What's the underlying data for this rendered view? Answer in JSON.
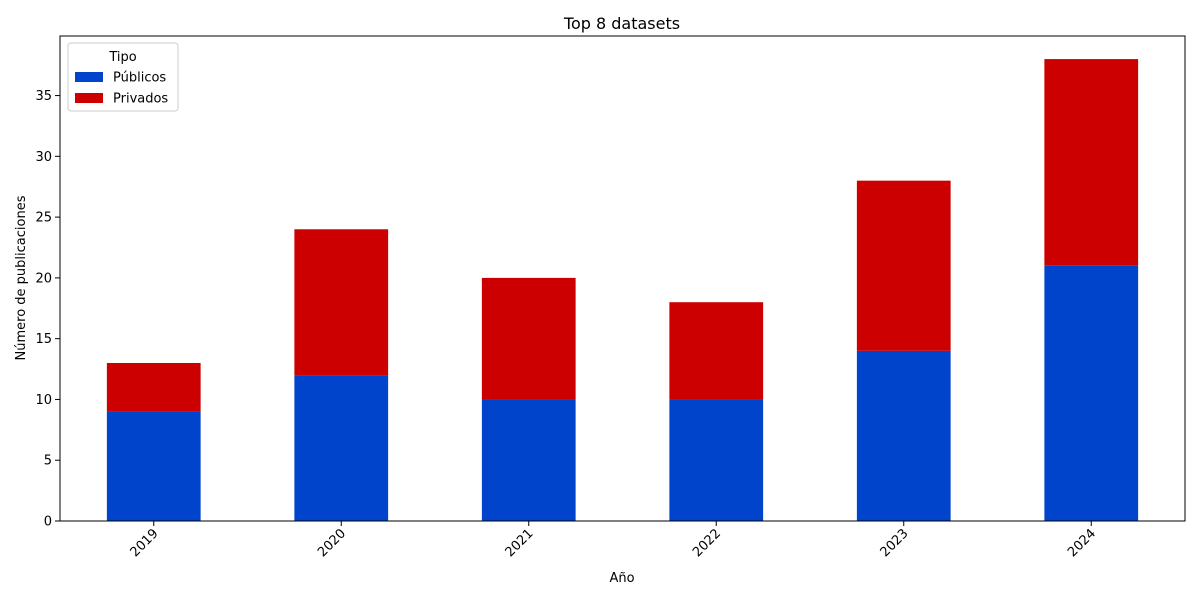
{
  "chart_data": {
    "type": "bar",
    "stacked": true,
    "title": "Top 8 datasets",
    "xlabel": "Año",
    "ylabel": "Número de publicaciones",
    "categories": [
      "2019",
      "2020",
      "2021",
      "2022",
      "2023",
      "2024"
    ],
    "series": [
      {
        "name": "Públicos",
        "color": "#0044cc",
        "values": [
          9,
          12,
          10,
          10,
          14,
          21
        ]
      },
      {
        "name": "Privados",
        "color": "#cc0000",
        "values": [
          4,
          12,
          10,
          8,
          14,
          17
        ]
      }
    ],
    "ylim": [
      0,
      39.9
    ],
    "yticks": [
      0,
      5,
      10,
      15,
      20,
      25,
      30,
      35
    ],
    "grid": false,
    "legend": {
      "title": "Tipo",
      "placement": "top-left"
    },
    "x_tick_rotation": 45
  }
}
